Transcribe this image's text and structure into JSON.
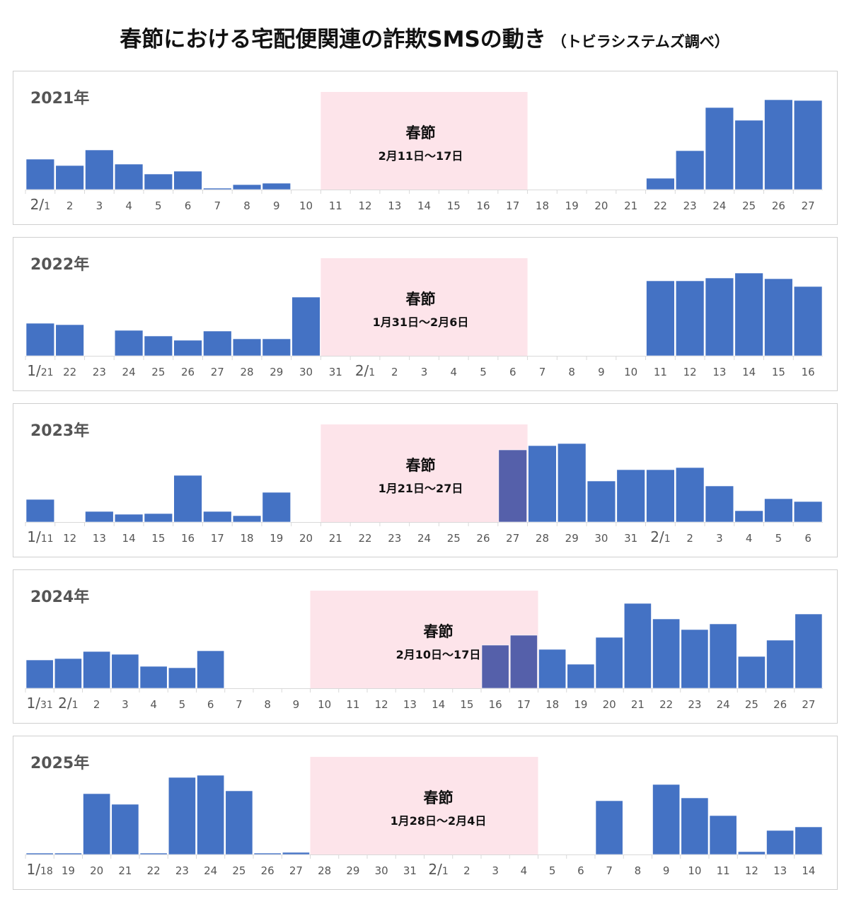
{
  "title": "春節における宅配便関連の詐欺SMSの動き",
  "subtitle": "（トビラシステムズ調べ）",
  "colors": {
    "bar": "#4472c4",
    "bar_in_festival": "#5560aa",
    "festival_shade": "#fde4ea"
  },
  "chart_data": [
    {
      "type": "bar",
      "year_label": "2021年",
      "festival_label": "春節",
      "festival_period": "2月11日～17日",
      "festival_range": [
        "11",
        "17"
      ],
      "categories": [
        "2/1",
        "2",
        "3",
        "4",
        "5",
        "6",
        "7",
        "8",
        "9",
        "10",
        "11",
        "12",
        "13",
        "14",
        "15",
        "16",
        "17",
        "18",
        "19",
        "20",
        "21",
        "22",
        "23",
        "24",
        "25",
        "26",
        "27"
      ],
      "values": [
        43,
        34,
        56,
        36,
        22,
        26,
        2,
        7,
        9,
        0,
        0,
        0,
        0,
        0,
        0,
        0,
        0,
        0,
        0,
        0,
        0,
        16,
        55,
        116,
        98,
        127,
        126
      ]
    },
    {
      "type": "bar",
      "year_label": "2022年",
      "festival_label": "春節",
      "festival_period": "1月31日～2月6日",
      "festival_range": [
        "31",
        "6"
      ],
      "categories": [
        "1/21",
        "22",
        "23",
        "24",
        "25",
        "26",
        "27",
        "28",
        "29",
        "30",
        "31",
        "2/1",
        "2",
        "3",
        "4",
        "5",
        "6",
        "7",
        "8",
        "9",
        "10",
        "11",
        "12",
        "13",
        "14",
        "15",
        "16"
      ],
      "values": [
        46,
        44,
        0,
        36,
        28,
        22,
        35,
        24,
        24,
        83,
        0,
        0,
        0,
        0,
        0,
        0,
        0,
        0,
        0,
        0,
        0,
        106,
        106,
        110,
        117,
        109,
        98
      ]
    },
    {
      "type": "bar",
      "year_label": "2023年",
      "festival_label": "春節",
      "festival_period": "1月21日～27日",
      "festival_range": [
        "21",
        "27"
      ],
      "categories": [
        "1/11",
        "12",
        "13",
        "14",
        "15",
        "16",
        "17",
        "18",
        "19",
        "20",
        "21",
        "22",
        "23",
        "24",
        "25",
        "26",
        "27",
        "28",
        "29",
        "30",
        "31",
        "2/1",
        "2",
        "3",
        "4",
        "5",
        "6"
      ],
      "values": [
        32,
        0,
        15,
        11,
        12,
        66,
        15,
        9,
        42,
        0,
        0,
        0,
        0,
        0,
        0,
        0,
        102,
        108,
        111,
        58,
        74,
        74,
        77,
        51,
        16,
        33,
        29
      ]
    },
    {
      "type": "bar",
      "year_label": "2024年",
      "festival_label": "春節",
      "festival_period": "2月10日～17日",
      "festival_range": [
        "10",
        "17"
      ],
      "categories": [
        "1/31",
        "2/1",
        "2",
        "3",
        "4",
        "5",
        "6",
        "7",
        "8",
        "9",
        "10",
        "11",
        "12",
        "13",
        "14",
        "15",
        "16",
        "17",
        "18",
        "19",
        "20",
        "21",
        "22",
        "23",
        "24",
        "25",
        "26",
        "27"
      ],
      "values": [
        40,
        42,
        52,
        48,
        31,
        29,
        53,
        0,
        0,
        0,
        0,
        0,
        0,
        0,
        0,
        0,
        61,
        75,
        55,
        34,
        72,
        120,
        98,
        83,
        91,
        45,
        68,
        105
      ]
    },
    {
      "type": "bar",
      "year_label": "2025年",
      "festival_label": "春節",
      "festival_period": "1月28日～2月4日",
      "festival_range": [
        "28",
        "4"
      ],
      "categories": [
        "1/18",
        "19",
        "20",
        "21",
        "22",
        "23",
        "24",
        "25",
        "26",
        "27",
        "28",
        "29",
        "30",
        "31",
        "2/1",
        "2",
        "3",
        "4",
        "5",
        "6",
        "7",
        "8",
        "9",
        "10",
        "11",
        "12",
        "13",
        "14"
      ],
      "values": [
        2,
        2,
        86,
        71,
        2,
        109,
        112,
        90,
        2,
        3,
        0,
        0,
        0,
        0,
        0,
        0,
        0,
        0,
        0,
        0,
        76,
        0,
        99,
        80,
        55,
        4,
        34,
        39
      ]
    }
  ]
}
